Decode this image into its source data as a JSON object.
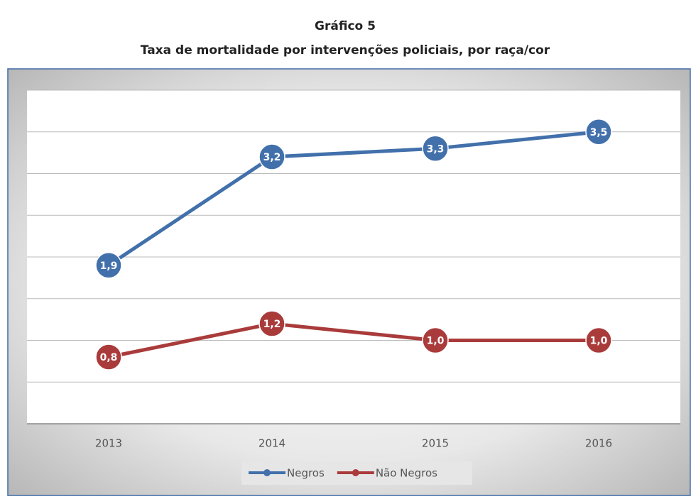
{
  "chart_data": {
    "type": "line",
    "title": "Gráfico 5",
    "subtitle": "Taxa de mortalidade por intervenções policiais, por raça/cor",
    "categories": [
      "2013",
      "2014",
      "2015",
      "2016"
    ],
    "series": [
      {
        "name": "Negros",
        "color": "#4270ab",
        "values": [
          1.9,
          3.2,
          3.3,
          3.5
        ],
        "value_labels": [
          "1,9",
          "3,2",
          "3,3",
          "3,5"
        ]
      },
      {
        "name": "Não Negros",
        "color": "#aa3b3b",
        "values": [
          0.8,
          1.2,
          1.0,
          1.0
        ],
        "value_labels": [
          "0,8",
          "1,2",
          "1,0",
          "1,0"
        ]
      }
    ],
    "ylim": [
      0,
      4
    ],
    "yticks": [
      0,
      0.5,
      1,
      1.5,
      2,
      2.5,
      3,
      3.5,
      4
    ],
    "grid": true,
    "legend": "bottom"
  }
}
